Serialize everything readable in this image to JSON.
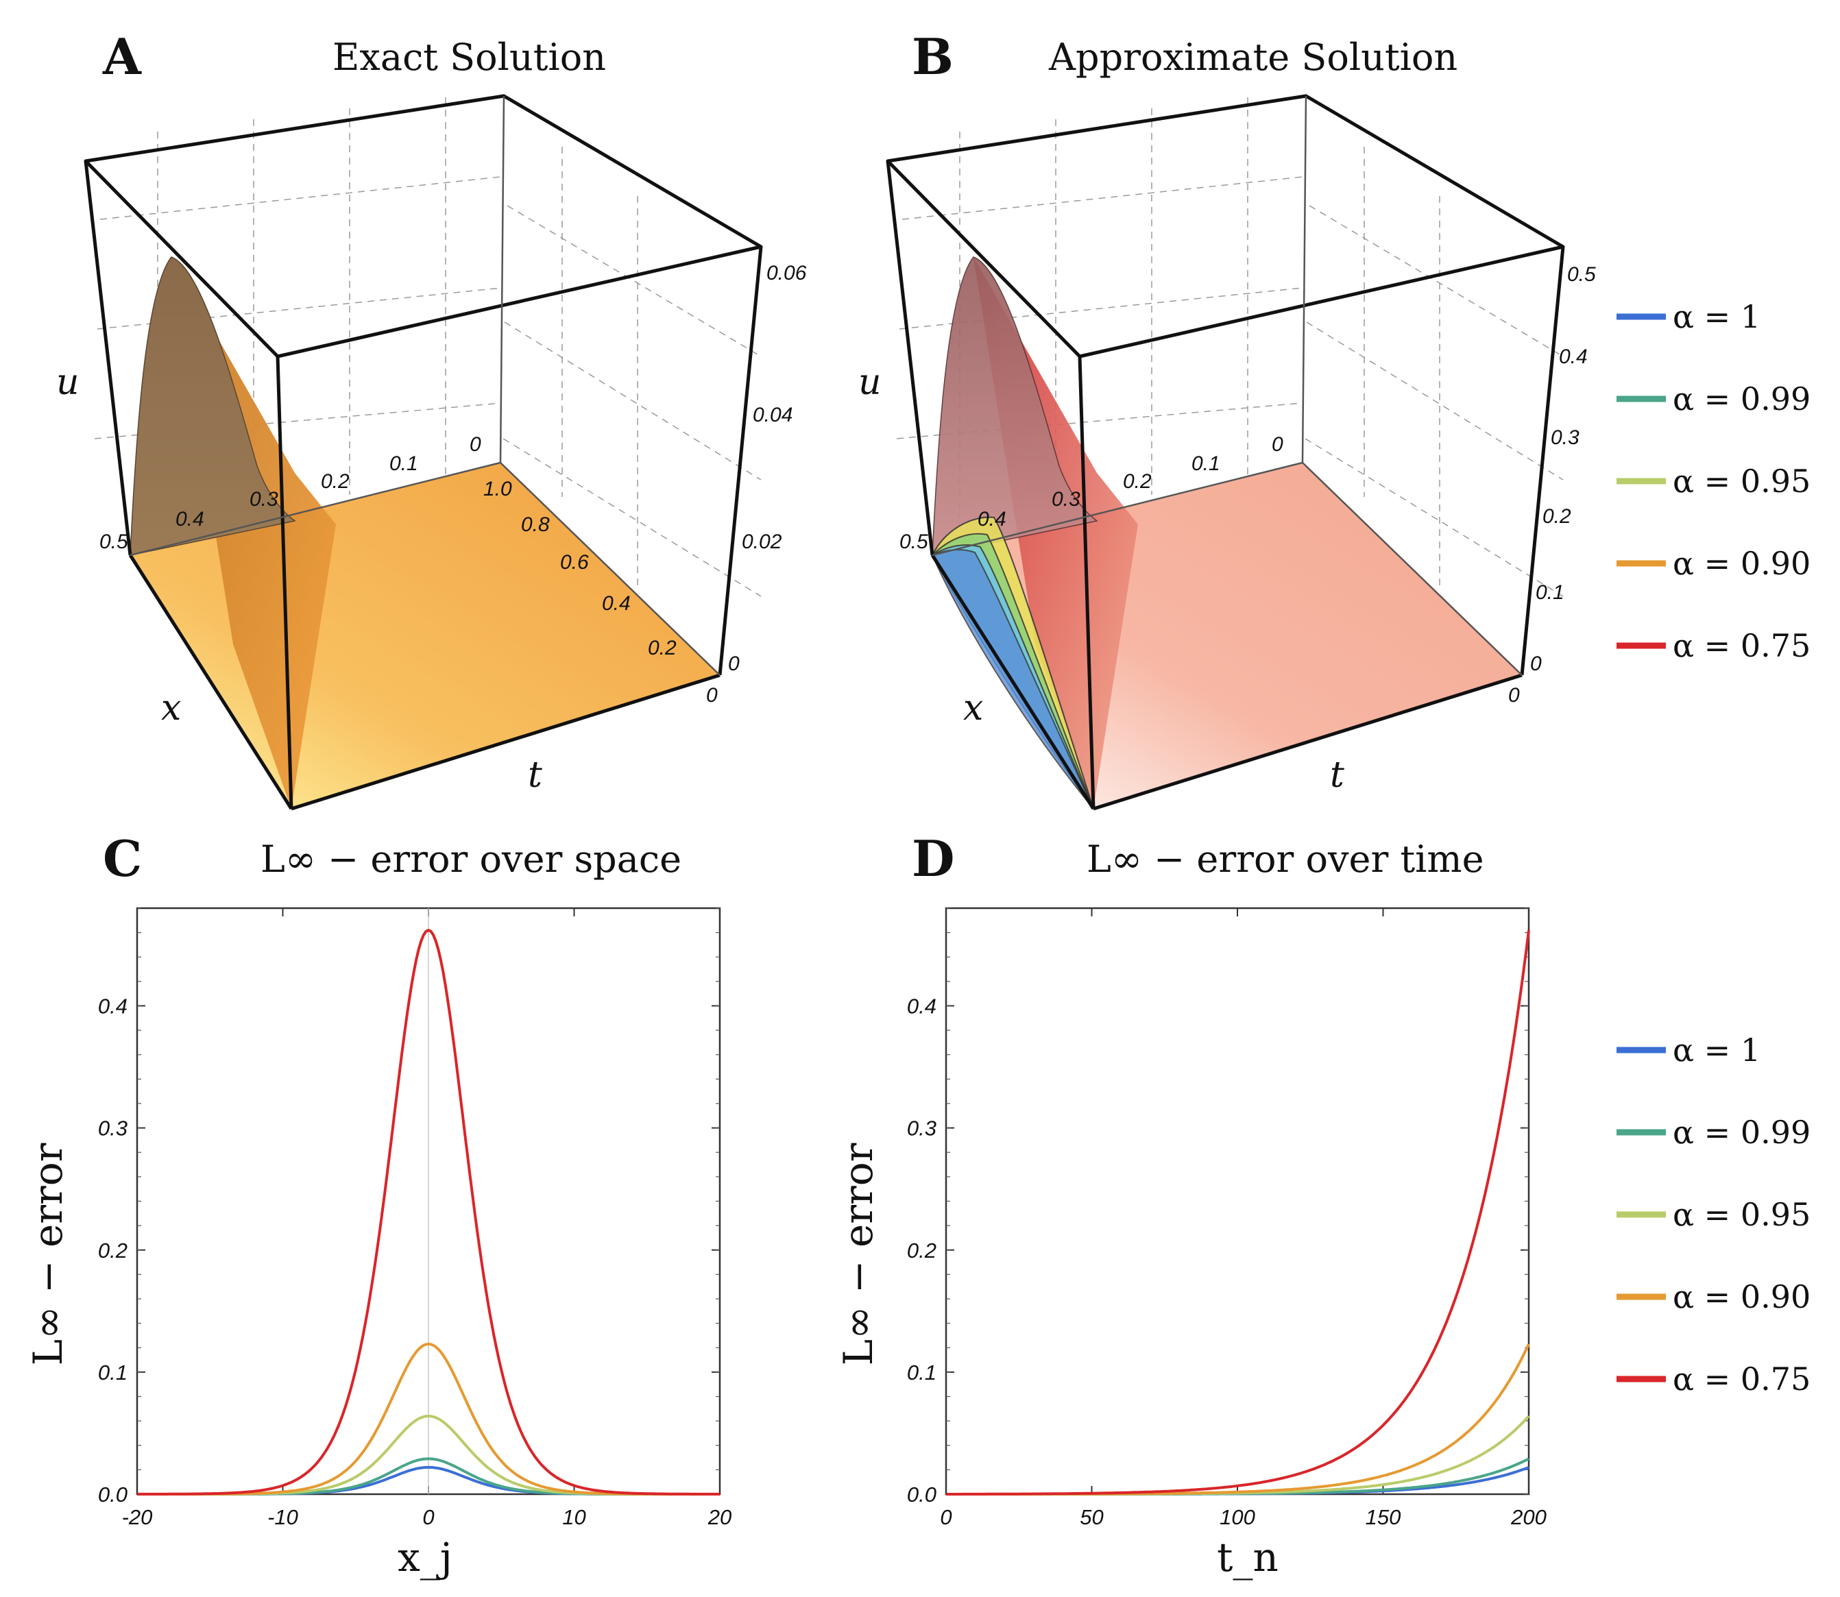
{
  "panels": {
    "A": {
      "letter": "A",
      "title": "Exact Solution"
    },
    "B": {
      "letter": "B",
      "title": "Approximate Solution"
    },
    "C": {
      "letter": "C",
      "title": "L∞ − error over space"
    },
    "D": {
      "letter": "D",
      "title": "L∞ − error over time"
    }
  },
  "legend": [
    {
      "label": "α = 1",
      "color": "#3b6fd4"
    },
    {
      "label": "α = 0.99",
      "color": "#4aa58a"
    },
    {
      "label": "α = 0.95",
      "color": "#b8cc6a"
    },
    {
      "label": "α = 0.90",
      "color": "#e59a32"
    },
    {
      "label": "α = 0.75",
      "color": "#d9262a"
    }
  ],
  "surfaceA": {
    "axis_u": "u",
    "axis_x": "x",
    "axis_t": "t",
    "u_ticks": [
      "0",
      "0.02",
      "0.04",
      "0.06"
    ],
    "x_ticks": [
      "0.5",
      "0.4",
      "0.3",
      "0.2",
      "0.1",
      "0"
    ],
    "t_ticks": [
      "0",
      "0.2",
      "0.4",
      "0.6",
      "0.8",
      "1.0"
    ],
    "corner_zero": "0",
    "surface_color": "#f2a03a"
  },
  "surfaceB": {
    "axis_u": "u",
    "axis_x": "x",
    "axis_t": "t",
    "u_ticks": [
      "0",
      "0.1",
      "0.2",
      "0.3",
      "0.4",
      "0.5"
    ],
    "x_ticks": [
      "0.5",
      "0.4",
      "0.3",
      "0.2",
      "0.1",
      "0"
    ],
    "corner_zero": "0",
    "surface_color": "#f07a62"
  },
  "chart_data": [
    {
      "type": "line",
      "panel": "C",
      "title": "L∞ − error over space",
      "xlabel": "x_j",
      "ylabel": "L∞ − error",
      "xlim": [
        -20,
        20
      ],
      "ylim": [
        0,
        0.48
      ],
      "xticks": [
        "-20",
        "-10",
        "0",
        "10",
        "20"
      ],
      "yticks": [
        "0.0",
        "0.1",
        "0.2",
        "0.3",
        "0.4"
      ],
      "shape": "sech^2 peak centered at x = 0",
      "series": [
        {
          "name": "α = 1",
          "peak": 0.022
        },
        {
          "name": "α = 0.99",
          "peak": 0.029
        },
        {
          "name": "α = 0.95",
          "peak": 0.064
        },
        {
          "name": "α = 0.90",
          "peak": 0.123
        },
        {
          "name": "α = 0.75",
          "peak": 0.462
        }
      ]
    },
    {
      "type": "line",
      "panel": "D",
      "title": "L∞ − error over time",
      "xlabel": "t_n",
      "ylabel": "L∞ − error",
      "xlim": [
        0,
        200
      ],
      "ylim": [
        0,
        0.48
      ],
      "xticks": [
        "0",
        "50",
        "100",
        "150",
        "200"
      ],
      "yticks": [
        "0.0",
        "0.1",
        "0.2",
        "0.3",
        "0.4"
      ],
      "shape": "monotone growth from 0 at t = 0 to final value at t = 200",
      "series": [
        {
          "name": "α = 1",
          "final": 0.022
        },
        {
          "name": "α = 0.99",
          "final": 0.029
        },
        {
          "name": "α = 0.95",
          "final": 0.064
        },
        {
          "name": "α = 0.90",
          "final": 0.123
        },
        {
          "name": "α = 0.75",
          "final": 0.462
        }
      ]
    }
  ]
}
